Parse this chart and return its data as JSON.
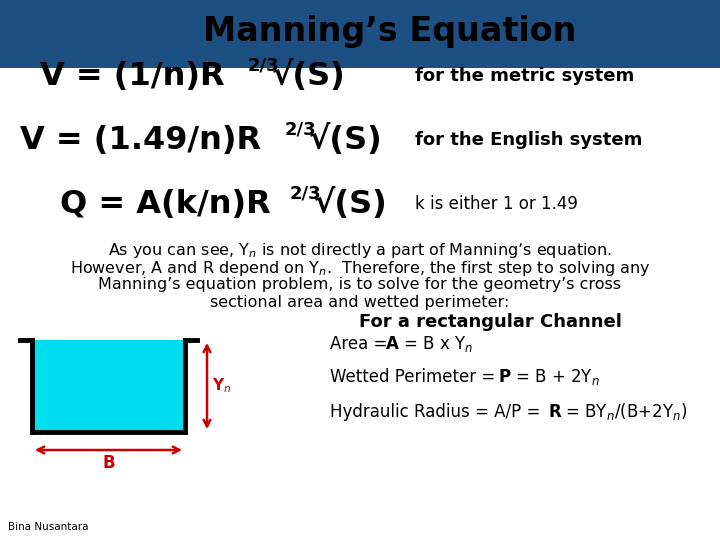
{
  "title": "Manning’s Equation",
  "header_bg": "#1e4f82",
  "bg_color": "#ffffff",
  "black": "#000000",
  "cyan_color": "#00ddee",
  "red_color": "#cc0000",
  "footer": "Bina Nusantara",
  "eq1_main": "V = (1/n)R",
  "eq1_sup": "2/3",
  "eq1_tail": "√(S)",
  "eq1_note": "for the metric system",
  "eq2_main": "V = (1.49/n)R",
  "eq2_sup": "2/3",
  "eq2_tail": "√(S)",
  "eq2_note": "for the English system",
  "eq3_main": "Q = A(k/n)R",
  "eq3_sup": "2/3",
  "eq3_tail": "√(S)",
  "eq3_note": "k is either 1 or 1.49",
  "rect_title": "For a rectangular Channel"
}
